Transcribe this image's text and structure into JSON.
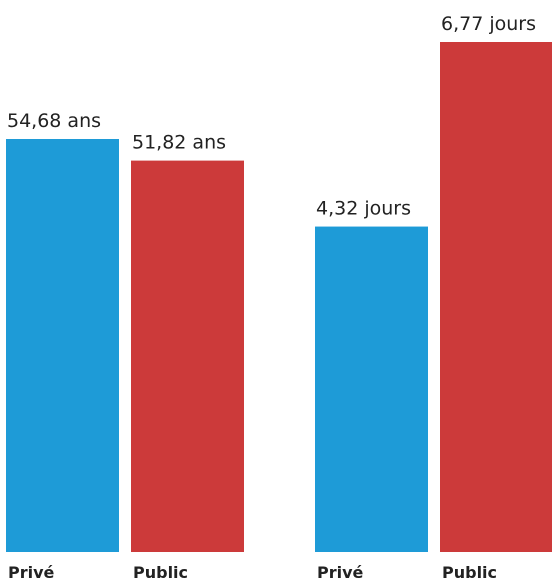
{
  "chart_data": [
    {
      "type": "bar",
      "categories": [
        "Privé",
        "Public"
      ],
      "values": [
        54.68,
        51.82
      ],
      "value_labels": [
        "54,68 ans",
        "51,82 ans"
      ],
      "colors": [
        "#1e9bd7",
        "#cc3a3a"
      ]
    },
    {
      "type": "bar",
      "categories": [
        "Privé",
        "Public"
      ],
      "values": [
        4.32,
        6.77
      ],
      "value_labels": [
        "4,32 jours",
        "6,77 jours"
      ],
      "colors": [
        "#1e9bd7",
        "#cc3a3a"
      ]
    }
  ]
}
